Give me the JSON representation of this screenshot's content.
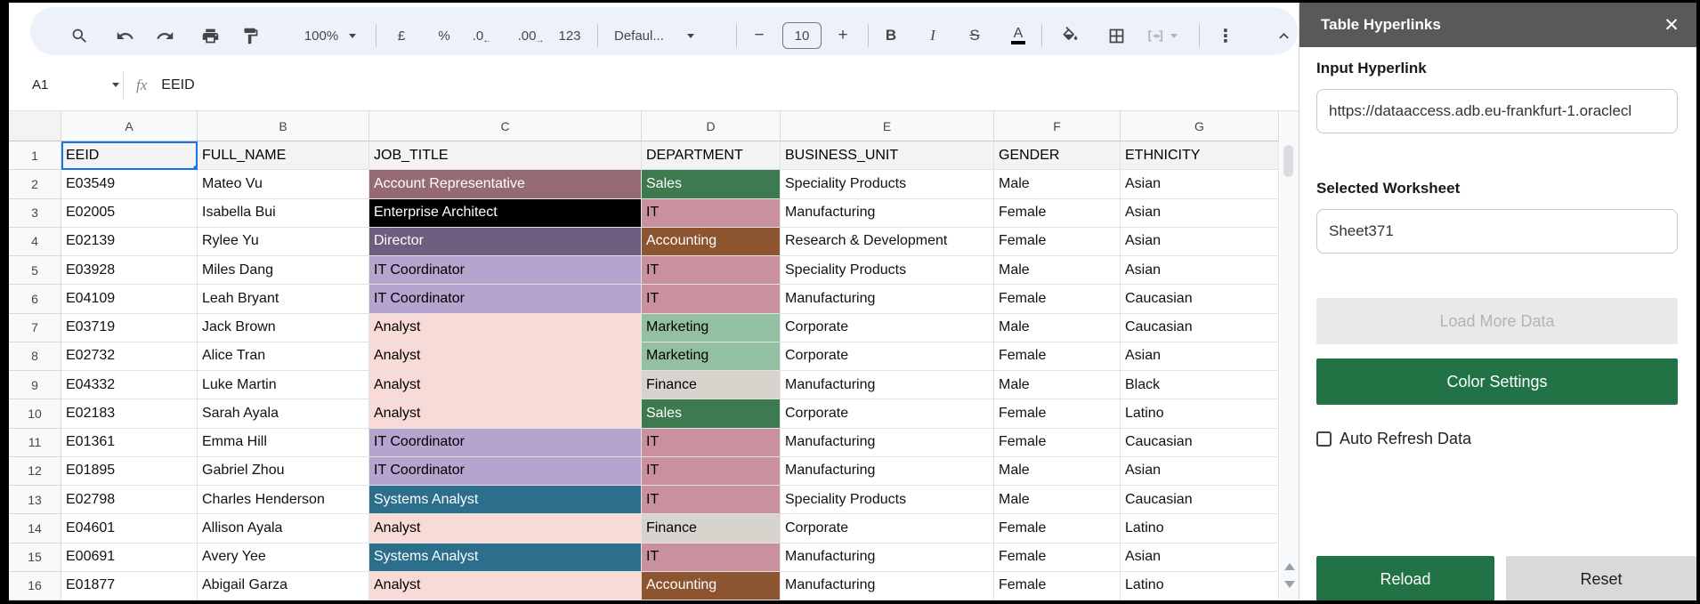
{
  "toolbar": {
    "zoom": "100%",
    "currency": "£",
    "percent": "%",
    "decrease_decimal": ".0",
    "decrease_decimal_arrow": "←",
    "increase_decimal": ".00",
    "increase_decimal_arrow": "→",
    "number_format": "123",
    "font_name": "Defaul...",
    "font_size": "10",
    "minus": "−",
    "plus": "+",
    "bold": "B",
    "italic": "I",
    "strikethrough": "S",
    "text_color": "A",
    "more": "⋮"
  },
  "formula_bar": {
    "cell_ref": "A1",
    "fx": "fx",
    "value": "EEID"
  },
  "sheet": {
    "columns": [
      "A",
      "B",
      "C",
      "D",
      "E",
      "F",
      "G"
    ],
    "selected_cell": "A1",
    "palette": {
      "hdr": {
        "bg": "#f3f3f3",
        "fg": "#000000"
      },
      "mauve": {
        "bg": "#966a74",
        "fg": "#ffffff"
      },
      "black": {
        "bg": "#000000",
        "fg": "#ffffff"
      },
      "dkpurple": {
        "bg": "#6e5d7e",
        "fg": "#ffffff"
      },
      "ltpurple": {
        "bg": "#b4a4ce",
        "fg": "#000000"
      },
      "ltpink": {
        "bg": "#f8dad6",
        "fg": "#000000"
      },
      "teal": {
        "bg": "#2b6f8c",
        "fg": "#ffffff"
      },
      "green": {
        "bg": "#3d7a50",
        "fg": "#ffffff"
      },
      "dustypink": {
        "bg": "#c9909e",
        "fg": "#000000"
      },
      "brown": {
        "bg": "#8d5430",
        "fg": "#ffffff"
      },
      "sage": {
        "bg": "#92c0a0",
        "fg": "#000000"
      },
      "ltgray": {
        "bg": "#d7d3cd",
        "fg": "#000000"
      }
    },
    "rows": [
      {
        "n": "1",
        "c": [
          {
            "t": "EEID",
            "s": "hdr"
          },
          {
            "t": "FULL_NAME",
            "s": "hdr"
          },
          {
            "t": "JOB_TITLE",
            "s": "hdr"
          },
          {
            "t": "DEPARTMENT",
            "s": "hdr"
          },
          {
            "t": "BUSINESS_UNIT",
            "s": "hdr"
          },
          {
            "t": "GENDER",
            "s": "hdr"
          },
          {
            "t": "ETHNICITY",
            "s": "hdr"
          }
        ]
      },
      {
        "n": "2",
        "c": [
          {
            "t": "E03549"
          },
          {
            "t": "Mateo Vu"
          },
          {
            "t": "Account Representative",
            "s": "mauve"
          },
          {
            "t": "Sales",
            "s": "green"
          },
          {
            "t": "Speciality Products"
          },
          {
            "t": "Male"
          },
          {
            "t": "Asian"
          }
        ]
      },
      {
        "n": "3",
        "c": [
          {
            "t": "E02005"
          },
          {
            "t": "Isabella Bui"
          },
          {
            "t": "Enterprise Architect",
            "s": "black"
          },
          {
            "t": "IT",
            "s": "dustypink"
          },
          {
            "t": "Manufacturing"
          },
          {
            "t": "Female"
          },
          {
            "t": "Asian"
          }
        ]
      },
      {
        "n": "4",
        "c": [
          {
            "t": "E02139"
          },
          {
            "t": "Rylee Yu"
          },
          {
            "t": "Director",
            "s": "dkpurple"
          },
          {
            "t": "Accounting",
            "s": "brown"
          },
          {
            "t": "Research & Development"
          },
          {
            "t": "Female"
          },
          {
            "t": "Asian"
          }
        ]
      },
      {
        "n": "5",
        "c": [
          {
            "t": "E03928"
          },
          {
            "t": "Miles Dang"
          },
          {
            "t": "IT Coordinator",
            "s": "ltpurple"
          },
          {
            "t": "IT",
            "s": "dustypink"
          },
          {
            "t": "Speciality Products"
          },
          {
            "t": "Male"
          },
          {
            "t": "Asian"
          }
        ]
      },
      {
        "n": "6",
        "c": [
          {
            "t": "E04109"
          },
          {
            "t": "Leah Bryant"
          },
          {
            "t": "IT Coordinator",
            "s": "ltpurple"
          },
          {
            "t": "IT",
            "s": "dustypink"
          },
          {
            "t": "Manufacturing"
          },
          {
            "t": "Female"
          },
          {
            "t": "Caucasian"
          }
        ]
      },
      {
        "n": "7",
        "c": [
          {
            "t": "E03719"
          },
          {
            "t": "Jack Brown"
          },
          {
            "t": "Analyst",
            "s": "ltpink"
          },
          {
            "t": "Marketing",
            "s": "sage"
          },
          {
            "t": "Corporate"
          },
          {
            "t": "Male"
          },
          {
            "t": "Caucasian"
          }
        ]
      },
      {
        "n": "8",
        "c": [
          {
            "t": "E02732"
          },
          {
            "t": "Alice Tran"
          },
          {
            "t": "Analyst",
            "s": "ltpink"
          },
          {
            "t": "Marketing",
            "s": "sage"
          },
          {
            "t": "Corporate"
          },
          {
            "t": "Female"
          },
          {
            "t": "Asian"
          }
        ]
      },
      {
        "n": "9",
        "c": [
          {
            "t": "E04332"
          },
          {
            "t": "Luke Martin"
          },
          {
            "t": "Analyst",
            "s": "ltpink"
          },
          {
            "t": "Finance",
            "s": "ltgray"
          },
          {
            "t": "Manufacturing"
          },
          {
            "t": "Male"
          },
          {
            "t": "Black"
          }
        ]
      },
      {
        "n": "10",
        "c": [
          {
            "t": "E02183"
          },
          {
            "t": "Sarah Ayala"
          },
          {
            "t": "Analyst",
            "s": "ltpink"
          },
          {
            "t": "Sales",
            "s": "green"
          },
          {
            "t": "Corporate"
          },
          {
            "t": "Female"
          },
          {
            "t": "Latino"
          }
        ]
      },
      {
        "n": "11",
        "c": [
          {
            "t": "E01361"
          },
          {
            "t": "Emma Hill"
          },
          {
            "t": "IT Coordinator",
            "s": "ltpurple"
          },
          {
            "t": "IT",
            "s": "dustypink"
          },
          {
            "t": "Manufacturing"
          },
          {
            "t": "Female"
          },
          {
            "t": "Caucasian"
          }
        ]
      },
      {
        "n": "12",
        "c": [
          {
            "t": "E01895"
          },
          {
            "t": "Gabriel Zhou"
          },
          {
            "t": "IT Coordinator",
            "s": "ltpurple"
          },
          {
            "t": "IT",
            "s": "dustypink"
          },
          {
            "t": "Manufacturing"
          },
          {
            "t": "Male"
          },
          {
            "t": "Asian"
          }
        ]
      },
      {
        "n": "13",
        "c": [
          {
            "t": "E02798"
          },
          {
            "t": "Charles Henderson"
          },
          {
            "t": "Systems Analyst",
            "s": "teal"
          },
          {
            "t": "IT",
            "s": "dustypink"
          },
          {
            "t": "Speciality Products"
          },
          {
            "t": "Male"
          },
          {
            "t": "Caucasian"
          }
        ]
      },
      {
        "n": "14",
        "c": [
          {
            "t": "E04601"
          },
          {
            "t": "Allison Ayala"
          },
          {
            "t": "Analyst",
            "s": "ltpink"
          },
          {
            "t": "Finance",
            "s": "ltgray"
          },
          {
            "t": "Corporate"
          },
          {
            "t": "Female"
          },
          {
            "t": "Latino"
          }
        ]
      },
      {
        "n": "15",
        "c": [
          {
            "t": "E00691"
          },
          {
            "t": "Avery Yee"
          },
          {
            "t": "Systems Analyst",
            "s": "teal"
          },
          {
            "t": "IT",
            "s": "dustypink"
          },
          {
            "t": "Manufacturing"
          },
          {
            "t": "Female"
          },
          {
            "t": "Asian"
          }
        ]
      },
      {
        "n": "16",
        "c": [
          {
            "t": "E01877"
          },
          {
            "t": "Abigail Garza"
          },
          {
            "t": "Analyst",
            "s": "ltpink"
          },
          {
            "t": "Accounting",
            "s": "brown"
          },
          {
            "t": "Manufacturing"
          },
          {
            "t": "Female"
          },
          {
            "t": "Latino"
          }
        ]
      }
    ]
  },
  "panel": {
    "title": "Table Hyperlinks",
    "close": "✕",
    "input_hyperlink_label": "Input Hyperlink",
    "hyperlink_value": "https://dataaccess.adb.eu-frankfurt-1.oraclecl",
    "selected_worksheet_label": "Selected Worksheet",
    "worksheet_value": "Sheet371",
    "load_more_label": "Load More Data",
    "color_settings_label": "Color Settings",
    "auto_refresh_label": "Auto Refresh Data",
    "reload_label": "Reload",
    "reset_label": "Reset",
    "accent_green": "#217346",
    "header_gray": "#595959"
  }
}
